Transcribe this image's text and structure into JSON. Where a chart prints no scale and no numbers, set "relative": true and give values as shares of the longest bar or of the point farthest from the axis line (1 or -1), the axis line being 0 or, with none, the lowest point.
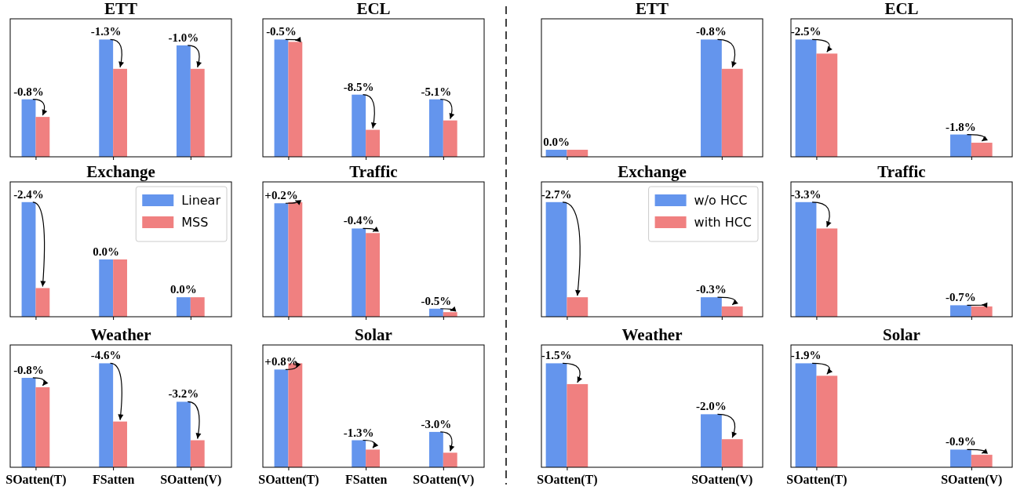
{
  "chart_data": [
    {
      "type": "bar",
      "title": "ETT",
      "categories": [
        null,
        null,
        null
      ],
      "relative": true,
      "tick_labels": false,
      "series": [
        {
          "color": "#6495ed",
          "values": [
            0.49,
            1,
            0.95
          ]
        },
        {
          "color": "#f08080",
          "values": [
            0.34,
            0.75,
            0.75
          ]
        }
      ],
      "annotations": [
        {
          "text": "-0.8%",
          "y": 0.49
        },
        {
          "text": "-1.3%",
          "y": 1
        },
        {
          "text": "-1.0%",
          "y": 0.95
        }
      ]
    },
    {
      "type": "bar",
      "title": "ECL",
      "categories": [
        null,
        null,
        null
      ],
      "relative": true,
      "tick_labels": false,
      "series": [
        {
          "color": "#6495ed",
          "values": [
            1,
            0.53,
            0.49
          ]
        },
        {
          "color": "#f08080",
          "values": [
            0.98,
            0.23,
            0.31
          ]
        }
      ],
      "annotations": [
        {
          "text": "-0.5%",
          "y": 1
        },
        {
          "text": "-8.5%",
          "y": 0.53
        },
        {
          "text": "-5.1%",
          "y": 0.49
        }
      ]
    },
    {
      "type": "bar",
      "title": "ETT",
      "categories": [
        null,
        null
      ],
      "relative": true,
      "tick_labels": false,
      "series": [
        {
          "color": "#6495ed",
          "values": [
            0.06,
            1
          ]
        },
        {
          "color": "#f08080",
          "values": [
            0.06,
            0.75
          ]
        }
      ],
      "annotations": [
        {
          "text": "0.0%",
          "y": 0.06
        },
        {
          "text": "-0.8%",
          "y": 1
        }
      ]
    },
    {
      "type": "bar",
      "title": "ECL",
      "categories": [
        null,
        null
      ],
      "relative": true,
      "tick_labels": false,
      "series": [
        {
          "color": "#6495ed",
          "values": [
            1,
            0.19
          ]
        },
        {
          "color": "#f08080",
          "values": [
            0.88,
            0.12
          ]
        }
      ],
      "annotations": [
        {
          "text": "-2.5%",
          "y": 1
        },
        {
          "text": "-1.8%",
          "y": 0.19
        }
      ]
    },
    {
      "type": "bar",
      "title": "Exchange",
      "categories": [
        null,
        null,
        null
      ],
      "relative": true,
      "tick_labels": false,
      "legend": "top right",
      "series": [
        {
          "name": "Linear",
          "color": "#6495ed",
          "values": [
            1,
            0.5,
            0.17
          ]
        },
        {
          "name": "MSS",
          "color": "#f08080",
          "values": [
            0.25,
            0.5,
            0.17
          ]
        }
      ],
      "annotations": [
        {
          "text": "-2.4%",
          "y": 1
        },
        {
          "text": "0.0%",
          "y": 0.5
        },
        {
          "text": "0.0%",
          "y": 0.17
        }
      ]
    },
    {
      "type": "bar",
      "title": "Traffic",
      "categories": [
        null,
        null,
        null
      ],
      "relative": true,
      "tick_labels": false,
      "series": [
        {
          "color": "#6495ed",
          "values": [
            0.99,
            0.77,
            0.07
          ]
        },
        {
          "color": "#f08080",
          "values": [
            1,
            0.73,
            0.04
          ]
        }
      ],
      "annotations": [
        {
          "text": "+0.2%",
          "y": 0.99
        },
        {
          "text": "-0.4%",
          "y": 0.77
        },
        {
          "text": "-0.5%",
          "y": 0.07
        }
      ]
    },
    {
      "type": "bar",
      "title": "Exchange",
      "categories": [
        null,
        null
      ],
      "relative": true,
      "tick_labels": false,
      "legend": "top right",
      "series": [
        {
          "name": "w/o HCC",
          "color": "#6495ed",
          "values": [
            1,
            0.17
          ]
        },
        {
          "name": "with HCC",
          "color": "#f08080",
          "values": [
            0.17,
            0.09
          ]
        }
      ],
      "annotations": [
        {
          "text": "-2.7%",
          "y": 1
        },
        {
          "text": "-0.3%",
          "y": 0.17
        }
      ]
    },
    {
      "type": "bar",
      "title": "Traffic",
      "categories": [
        null,
        null
      ],
      "relative": true,
      "tick_labels": false,
      "series": [
        {
          "color": "#6495ed",
          "values": [
            1,
            0.1
          ]
        },
        {
          "color": "#f08080",
          "values": [
            0.77,
            0.09
          ]
        }
      ],
      "annotations": [
        {
          "text": "-3.3%",
          "y": 1
        },
        {
          "text": "-0.7%",
          "y": 0.1
        }
      ]
    },
    {
      "type": "bar",
      "title": "Weather",
      "categories": [
        "SOatten(T)",
        "FSatten",
        "SOatten(V)"
      ],
      "relative": true,
      "tick_labels": "x",
      "series": [
        {
          "color": "#6495ed",
          "values": [
            0.86,
            1,
            0.63
          ]
        },
        {
          "color": "#f08080",
          "values": [
            0.77,
            0.44,
            0.26
          ]
        }
      ],
      "annotations": [
        {
          "text": "-0.8%",
          "x": "SOatten(T)",
          "y": 0.86
        },
        {
          "text": "-4.6%",
          "x": "FSatten",
          "y": 1
        },
        {
          "text": "-3.2%",
          "x": "SOatten(V)",
          "y": 0.63
        }
      ]
    },
    {
      "type": "bar",
      "title": "Solar",
      "categories": [
        "SOatten(T)",
        "FSatten",
        "SOatten(V)"
      ],
      "relative": true,
      "tick_labels": "x",
      "series": [
        {
          "color": "#6495ed",
          "values": [
            0.94,
            0.26,
            0.34
          ]
        },
        {
          "color": "#f08080",
          "values": [
            1,
            0.17,
            0.14
          ]
        }
      ],
      "annotations": [
        {
          "text": "+0.8%",
          "x": "SOatten(T)",
          "y": 0.94
        },
        {
          "text": "-1.3%",
          "x": "FSatten",
          "y": 0.26
        },
        {
          "text": "-3.0%",
          "x": "SOatten(V)",
          "y": 0.34
        }
      ]
    },
    {
      "type": "bar",
      "title": "Weather",
      "categories": [
        "SOatten(T)",
        "SOatten(V)"
      ],
      "relative": true,
      "tick_labels": "x",
      "series": [
        {
          "color": "#6495ed",
          "values": [
            1,
            0.51
          ]
        },
        {
          "color": "#f08080",
          "values": [
            0.8,
            0.27
          ]
        }
      ],
      "annotations": [
        {
          "text": "-1.5%",
          "x": "SOatten(T)",
          "y": 1
        },
        {
          "text": "-2.0%",
          "x": "SOatten(V)",
          "y": 0.51
        }
      ]
    },
    {
      "type": "bar",
      "title": "Solar",
      "categories": [
        "SOatten(T)",
        "SOatten(V)"
      ],
      "relative": true,
      "tick_labels": "x",
      "series": [
        {
          "color": "#6495ed",
          "values": [
            1,
            0.17
          ]
        },
        {
          "color": "#f08080",
          "values": [
            0.88,
            0.12
          ]
        }
      ],
      "annotations": [
        {
          "text": "-1.9%",
          "x": "SOatten(T)",
          "y": 1
        },
        {
          "text": "-0.9%",
          "x": "SOatten(V)",
          "y": 0.17
        }
      ]
    }
  ]
}
